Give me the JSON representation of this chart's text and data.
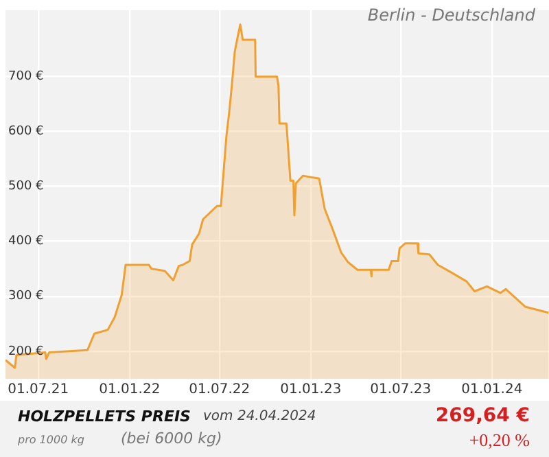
{
  "chart_data": {
    "type": "area",
    "title": "Berlin - Deutschland",
    "series": [
      {
        "color": "#f0a030",
        "x": [
          "2021-04-26",
          "2021-05-15",
          "2021-05-18",
          "2021-07-15",
          "2021-07-17",
          "2021-07-23",
          "2021-10-08",
          "2021-10-22",
          "2021-11-18",
          "2021-12-02",
          "2021-12-16",
          "2021-12-24",
          "2022-02-09",
          "2022-02-14",
          "2022-03-13",
          "2022-03-30",
          "2022-04-10",
          "2022-04-18",
          "2022-05-02",
          "2022-05-07",
          "2022-05-21",
          "2022-05-29",
          "2022-06-26",
          "2022-07-04",
          "2022-07-15",
          "2022-07-21",
          "2022-07-26",
          "2022-08-01",
          "2022-08-06",
          "2022-08-12",
          "2022-08-17",
          "2022-09-11",
          "2022-09-12",
          "2022-10-25",
          "2022-10-28",
          "2022-10-30",
          "2022-11-13",
          "2022-11-21",
          "2022-11-27",
          "2022-11-29",
          "2022-12-02",
          "2022-12-16",
          "2023-01-18",
          "2023-01-29",
          "2023-02-14",
          "2023-03-03",
          "2023-03-17",
          "2023-04-05",
          "2023-05-02",
          "2023-05-03",
          "2023-05-04",
          "2023-06-07",
          "2023-06-13",
          "2023-06-26",
          "2023-06-29",
          "2023-07-10",
          "2023-08-04",
          "2023-08-06",
          "2023-08-28",
          "2023-09-14",
          "2023-10-06",
          "2023-11-11",
          "2023-11-27",
          "2023-12-22",
          "2024-01-18",
          "2024-01-29",
          "2024-03-08",
          "2024-04-24"
        ],
        "values": [
          184,
          170,
          193,
          198,
          186,
          198,
          202,
          232,
          239,
          262,
          302,
          357,
          357,
          350,
          346,
          329,
          355,
          357,
          364,
          394,
          414,
          440,
          464,
          464,
          590,
          637,
          683,
          745,
          768,
          794,
          766,
          766,
          699,
          699,
          683,
          614,
          614,
          510,
          510,
          447,
          505,
          519,
          514,
          459,
          422,
          380,
          362,
          348,
          348,
          336,
          348,
          348,
          364,
          364,
          387,
          396,
          396,
          378,
          376,
          357,
          346,
          327,
          309,
          318,
          306,
          313,
          281,
          270
        ]
      }
    ],
    "xlim": [
      "2021-04-26",
      "2024-04-25"
    ],
    "xticks": [
      {
        "value": "2021-07-01",
        "label": "01.07.21"
      },
      {
        "value": "2022-01-01",
        "label": "01.01.22"
      },
      {
        "value": "2022-07-01",
        "label": "01.07.22"
      },
      {
        "value": "2023-01-01",
        "label": "01.01.23"
      },
      {
        "value": "2023-07-01",
        "label": "01.07.23"
      },
      {
        "value": "2024-01-01",
        "label": "01.01.24"
      }
    ],
    "ylim": [
      150,
      820
    ],
    "yticks": [
      {
        "value": 200,
        "label": "200 €"
      },
      {
        "value": 300,
        "label": "300 €"
      },
      {
        "value": 400,
        "label": "400 €"
      },
      {
        "value": 500,
        "label": "500 €"
      },
      {
        "value": 600,
        "label": "600 €"
      },
      {
        "value": 700,
        "label": "700 €"
      }
    ],
    "grid": true,
    "annotations": [
      "HOLZPELLETS PREIS",
      "vom 24.04.2024",
      "pro 1000 kg",
      "(bei 6000 kg)",
      "269,64 €",
      "+0,20 %"
    ]
  }
}
